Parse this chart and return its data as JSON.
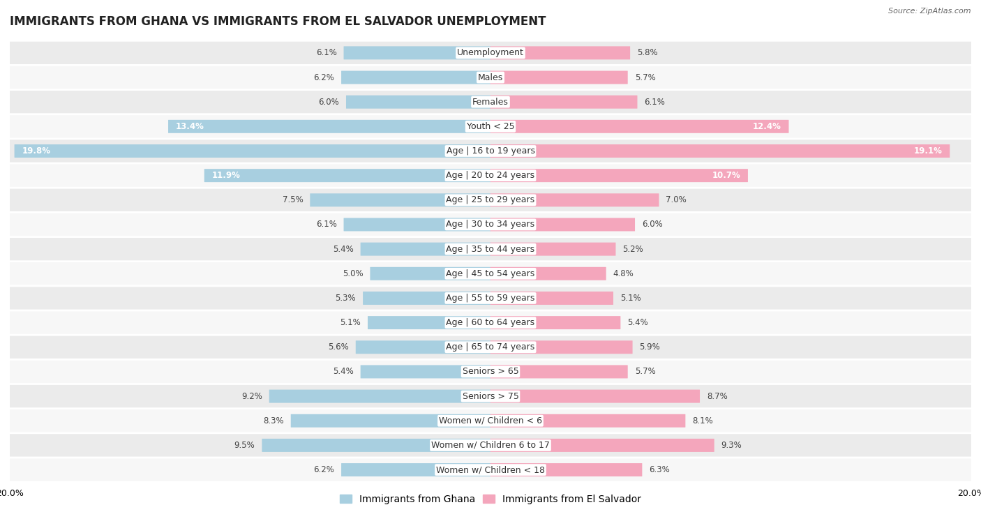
{
  "title": "IMMIGRANTS FROM GHANA VS IMMIGRANTS FROM EL SALVADOR UNEMPLOYMENT",
  "source": "Source: ZipAtlas.com",
  "categories": [
    "Unemployment",
    "Males",
    "Females",
    "Youth < 25",
    "Age | 16 to 19 years",
    "Age | 20 to 24 years",
    "Age | 25 to 29 years",
    "Age | 30 to 34 years",
    "Age | 35 to 44 years",
    "Age | 45 to 54 years",
    "Age | 55 to 59 years",
    "Age | 60 to 64 years",
    "Age | 65 to 74 years",
    "Seniors > 65",
    "Seniors > 75",
    "Women w/ Children < 6",
    "Women w/ Children 6 to 17",
    "Women w/ Children < 18"
  ],
  "ghana_values": [
    6.1,
    6.2,
    6.0,
    13.4,
    19.8,
    11.9,
    7.5,
    6.1,
    5.4,
    5.0,
    5.3,
    5.1,
    5.6,
    5.4,
    9.2,
    8.3,
    9.5,
    6.2
  ],
  "elsalvador_values": [
    5.8,
    5.7,
    6.1,
    12.4,
    19.1,
    10.7,
    7.0,
    6.0,
    5.2,
    4.8,
    5.1,
    5.4,
    5.9,
    5.7,
    8.7,
    8.1,
    9.3,
    6.3
  ],
  "ghana_color": "#a8cfe0",
  "elsalvador_color": "#f4a6bc",
  "row_color_even": "#ebebeb",
  "row_color_odd": "#f7f7f7",
  "background_color": "#ffffff",
  "xlim": 20.0,
  "bar_height": 0.52,
  "title_fontsize": 12,
  "label_fontsize": 9,
  "value_fontsize": 8.5,
  "legend_fontsize": 10,
  "value_white_threshold": 10.0
}
